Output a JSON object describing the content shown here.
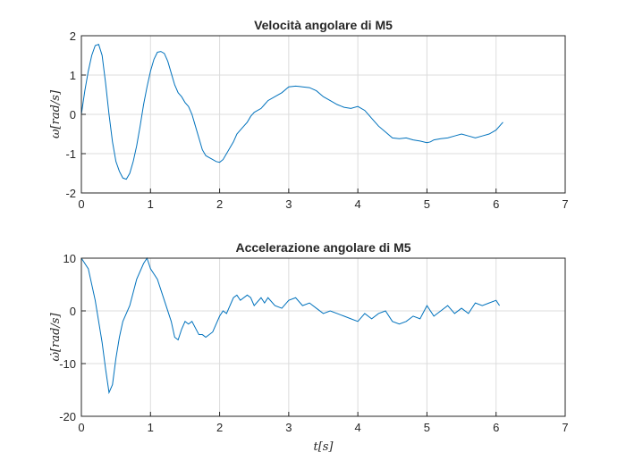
{
  "chart_data": [
    {
      "type": "line",
      "title": "Velocità angolare di M5",
      "xlabel": "",
      "ylabel": "ω[rad/s]",
      "xlim": [
        0,
        7
      ],
      "ylim": [
        -2,
        2
      ],
      "xticks": [
        "0",
        "1",
        "2",
        "3",
        "4",
        "5",
        "6",
        "7"
      ],
      "yticks": [
        "-2",
        "-1",
        "0",
        "1",
        "2"
      ],
      "grid": true,
      "color": "#0072BD",
      "series": [
        {
          "x": [
            0,
            0.05,
            0.1,
            0.15,
            0.2,
            0.25,
            0.3,
            0.35,
            0.4,
            0.45,
            0.5,
            0.55,
            0.6,
            0.65,
            0.7,
            0.75,
            0.8,
            0.85,
            0.9,
            0.95,
            1.0,
            1.05,
            1.1,
            1.15,
            1.2,
            1.25,
            1.3,
            1.35,
            1.4,
            1.45,
            1.5,
            1.55,
            1.6,
            1.65,
            1.7,
            1.75,
            1.8,
            1.85,
            1.9,
            1.95,
            2.0,
            2.05,
            2.1,
            2.15,
            2.2,
            2.25,
            2.3,
            2.35,
            2.4,
            2.45,
            2.5,
            2.55,
            2.6,
            2.65,
            2.7,
            2.8,
            2.9,
            3.0,
            3.1,
            3.15,
            3.2,
            3.3,
            3.4,
            3.5,
            3.6,
            3.7,
            3.8,
            3.9,
            4.0,
            4.1,
            4.2,
            4.3,
            4.4,
            4.5,
            4.6,
            4.7,
            4.8,
            4.9,
            5.0,
            5.05,
            5.1,
            5.2,
            5.3,
            5.4,
            5.5,
            5.6,
            5.7,
            5.8,
            5.9,
            6.0,
            6.05,
            6.1
          ],
          "y": [
            0.0,
            0.6,
            1.1,
            1.5,
            1.75,
            1.78,
            1.5,
            0.8,
            0.0,
            -0.7,
            -1.2,
            -1.45,
            -1.62,
            -1.65,
            -1.5,
            -1.2,
            -0.8,
            -0.3,
            0.25,
            0.7,
            1.1,
            1.4,
            1.58,
            1.6,
            1.55,
            1.35,
            1.05,
            0.75,
            0.55,
            0.45,
            0.3,
            0.2,
            0.0,
            -0.3,
            -0.6,
            -0.9,
            -1.05,
            -1.1,
            -1.15,
            -1.2,
            -1.22,
            -1.15,
            -1.0,
            -0.85,
            -0.7,
            -0.5,
            -0.4,
            -0.3,
            -0.2,
            -0.05,
            0.05,
            0.1,
            0.15,
            0.25,
            0.35,
            0.45,
            0.55,
            0.7,
            0.72,
            0.71,
            0.7,
            0.68,
            0.6,
            0.45,
            0.35,
            0.25,
            0.18,
            0.15,
            0.2,
            0.1,
            -0.1,
            -0.3,
            -0.45,
            -0.6,
            -0.62,
            -0.6,
            -0.65,
            -0.68,
            -0.72,
            -0.7,
            -0.65,
            -0.62,
            -0.6,
            -0.55,
            -0.5,
            -0.55,
            -0.6,
            -0.55,
            -0.5,
            -0.4,
            -0.3,
            -0.2
          ]
        }
      ]
    },
    {
      "type": "line",
      "title": "Accelerazione angolare di M5",
      "xlabel": "t[s]",
      "ylabel": "ω̇[rad/s]",
      "xlim": [
        0,
        7
      ],
      "ylim": [
        -20,
        10
      ],
      "xticks": [
        "0",
        "1",
        "2",
        "3",
        "4",
        "5",
        "6",
        "7"
      ],
      "yticks": [
        "-20",
        "-10",
        "0",
        "10"
      ],
      "grid": true,
      "color": "#0072BD",
      "series": [
        {
          "x": [
            0,
            0.1,
            0.2,
            0.25,
            0.3,
            0.35,
            0.4,
            0.45,
            0.5,
            0.55,
            0.6,
            0.7,
            0.8,
            0.9,
            0.95,
            1.0,
            1.1,
            1.2,
            1.3,
            1.35,
            1.4,
            1.45,
            1.5,
            1.55,
            1.6,
            1.7,
            1.75,
            1.8,
            1.9,
            2.0,
            2.05,
            2.1,
            2.2,
            2.25,
            2.3,
            2.4,
            2.45,
            2.5,
            2.6,
            2.65,
            2.7,
            2.8,
            2.9,
            3.0,
            3.1,
            3.2,
            3.3,
            3.4,
            3.5,
            3.6,
            3.7,
            3.8,
            3.9,
            4.0,
            4.1,
            4.2,
            4.3,
            4.4,
            4.5,
            4.6,
            4.7,
            4.8,
            4.9,
            5.0,
            5.1,
            5.2,
            5.3,
            5.4,
            5.5,
            5.6,
            5.7,
            5.8,
            5.9,
            6.0,
            6.05
          ],
          "y": [
            10,
            8,
            2,
            -2,
            -6,
            -11,
            -15.5,
            -14,
            -9,
            -5,
            -2,
            1,
            6,
            9,
            10,
            8,
            6,
            2,
            -2,
            -5,
            -5.5,
            -3.5,
            -2,
            -2.5,
            -2,
            -4.5,
            -4.5,
            -5,
            -4,
            -1,
            0,
            -0.5,
            2.5,
            3,
            2,
            3,
            2.5,
            1,
            2.5,
            1.5,
            2.5,
            1,
            0.5,
            2,
            2.5,
            1,
            1.5,
            0.5,
            -0.5,
            0,
            -0.5,
            -1,
            -1.5,
            -2,
            -0.5,
            -1.5,
            -0.5,
            0,
            -2,
            -2.5,
            -2,
            -1,
            -1.5,
            1,
            -1,
            0,
            1,
            -0.5,
            0.5,
            -0.5,
            1.5,
            1,
            1.5,
            2,
            1
          ]
        }
      ]
    }
  ]
}
